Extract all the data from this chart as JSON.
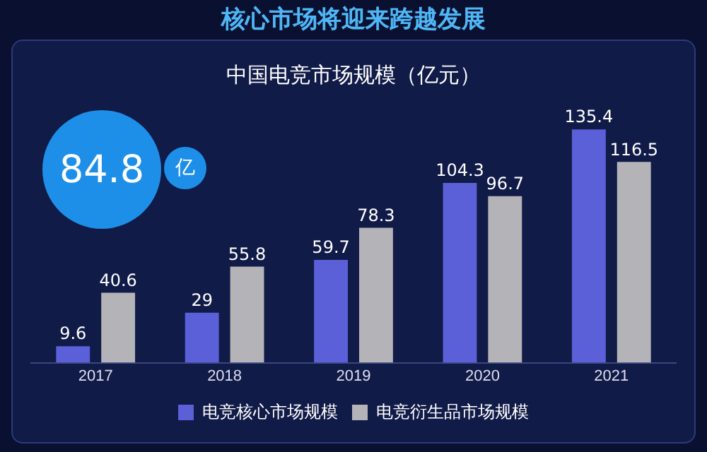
{
  "chart_data": {
    "type": "bar",
    "title": "核心市场将迎来跨越发展",
    "subtitle": "中国电竞市场规模（亿元）",
    "categories": [
      "2017",
      "2018",
      "2019",
      "2020",
      "2021"
    ],
    "series": [
      {
        "name": "电竞核心市场规模",
        "color": "#5b5fd8",
        "values": [
          9.6,
          29,
          59.7,
          104.3,
          135.4
        ]
      },
      {
        "name": "电竞衍生品市场规模",
        "color": "#b4b4b8",
        "values": [
          40.6,
          55.8,
          78.3,
          96.7,
          116.5
        ]
      }
    ],
    "annotations": [
      "84.8",
      "亿"
    ],
    "data_labels": true,
    "legend": "bottom",
    "grid": false
  }
}
